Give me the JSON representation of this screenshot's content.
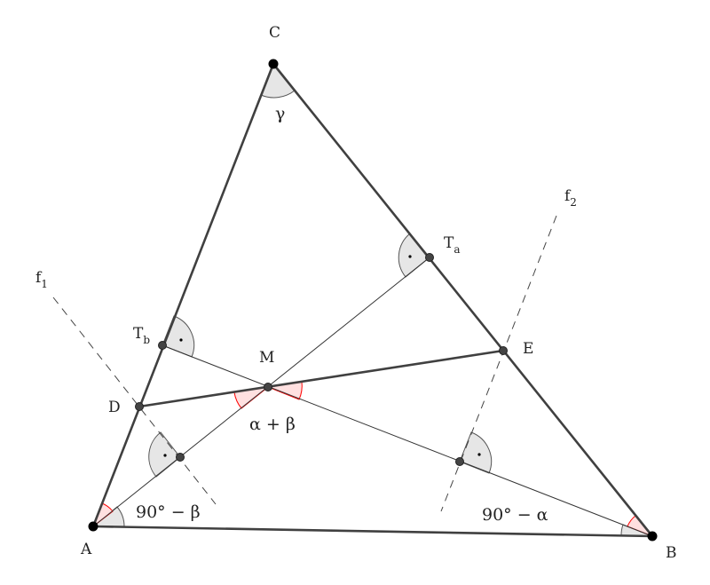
{
  "points": {
    "A": "A",
    "B": "B",
    "C": "C",
    "D": "D",
    "E": "E",
    "M": "M",
    "Ta": {
      "base": "T",
      "sub": "a"
    },
    "Tb": {
      "base": "T",
      "sub": "b"
    }
  },
  "lines": {
    "f1": {
      "base": "f",
      "sub": "1"
    },
    "f2": {
      "base": "f",
      "sub": "2"
    }
  },
  "angles": {
    "C": "γ",
    "M": "α + β",
    "A": "90° − β",
    "B": "90° − α"
  },
  "colors": {
    "stroke": "#404040",
    "angle_fill": "#e6e6e6",
    "angle_red": "#ff0000",
    "angle_red_fill": "#ffe0e0"
  }
}
